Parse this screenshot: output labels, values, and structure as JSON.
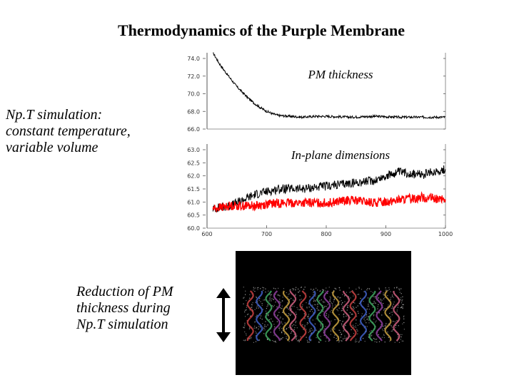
{
  "title": "Thermodynamics of the Purple Membrane",
  "left_text": [
    "Np.T simulation:",
    "constant temperature,",
    "variable volume"
  ],
  "caption": [
    "Reduction of PM",
    "thickness during",
    "Np.T simulation"
  ],
  "colors": {
    "series_black": "#000000",
    "series_red": "#ff0000",
    "render_bg": "#000000"
  },
  "chart_data": [
    {
      "type": "line",
      "title": "PM thickness",
      "ylabel": "",
      "yticks": [
        "74.0",
        "72.0",
        "70.0",
        "68.0",
        "66.0"
      ],
      "ylim": [
        66.0,
        75.0
      ],
      "xlim": [
        600,
        1000
      ],
      "series": [
        {
          "color": "#000000",
          "x": [
            610,
            620,
            630,
            640,
            650,
            660,
            670,
            680,
            690,
            700,
            710,
            720,
            740,
            760,
            780,
            800,
            840,
            880,
            920,
            960,
            1000
          ],
          "y": [
            75.0,
            73.8,
            72.8,
            71.9,
            71.0,
            70.3,
            69.6,
            69.0,
            68.5,
            68.1,
            67.8,
            67.6,
            67.5,
            67.4,
            67.5,
            67.5,
            67.4,
            67.5,
            67.4,
            67.4,
            67.4
          ]
        }
      ]
    },
    {
      "type": "line",
      "title": "In-plane dimensions",
      "ylabel": "",
      "xlabel": "",
      "yticks": [
        "63.0",
        "62.5",
        "62.0",
        "61.5",
        "61.0",
        "60.5",
        "60.0"
      ],
      "xticks": [
        "600",
        "700",
        "800",
        "900",
        "1000"
      ],
      "ylim": [
        60.0,
        63.0
      ],
      "xlim": [
        600,
        1000
      ],
      "series": [
        {
          "color": "#000000",
          "x": [
            610,
            640,
            680,
            720,
            760,
            800,
            840,
            880,
            920,
            960,
            1000
          ],
          "y": [
            60.7,
            60.8,
            61.2,
            61.4,
            61.4,
            61.5,
            61.6,
            61.7,
            62.0,
            61.9,
            62.1
          ]
        },
        {
          "color": "#ff0000",
          "x": [
            610,
            640,
            680,
            720,
            760,
            800,
            840,
            880,
            920,
            960,
            1000
          ],
          "y": [
            60.7,
            60.8,
            60.8,
            60.9,
            60.9,
            60.9,
            61.0,
            60.9,
            61.0,
            61.1,
            61.0
          ]
        }
      ]
    }
  ]
}
